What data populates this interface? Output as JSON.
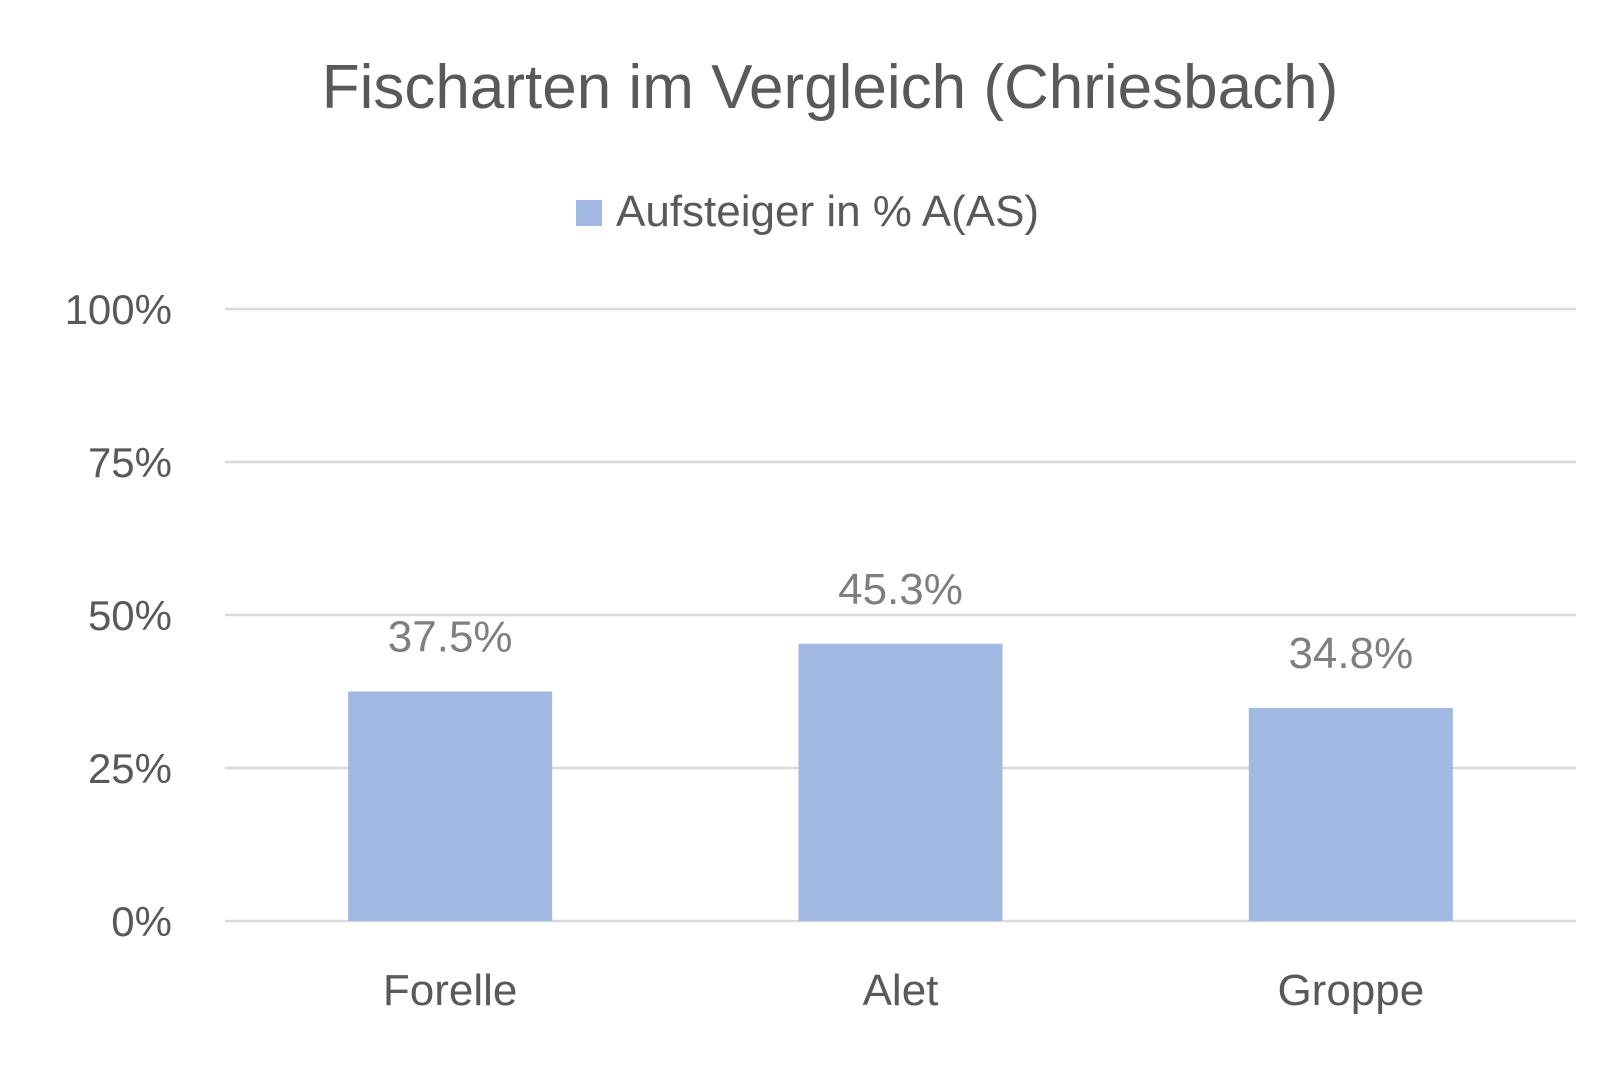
{
  "chart_data": {
    "type": "bar",
    "title": "Fischarten im Vergleich (Chriesbach)",
    "categories": [
      "Forelle",
      "Alet",
      "Groppe"
    ],
    "series": [
      {
        "name": "Aufsteiger in % A(AS)",
        "values": [
          37.5,
          45.3,
          34.8
        ],
        "value_labels": [
          "37.5%",
          "45.3%",
          "34.8%"
        ],
        "color": "#a0b8e2"
      }
    ],
    "ylim": [
      0,
      100
    ],
    "yticks": [
      0,
      25,
      50,
      75,
      100
    ],
    "ytick_labels": [
      "0%",
      "25%",
      "50%",
      "75%",
      "100%"
    ],
    "xlabel": "",
    "ylabel": "",
    "grid": true,
    "legend_position": "top"
  }
}
